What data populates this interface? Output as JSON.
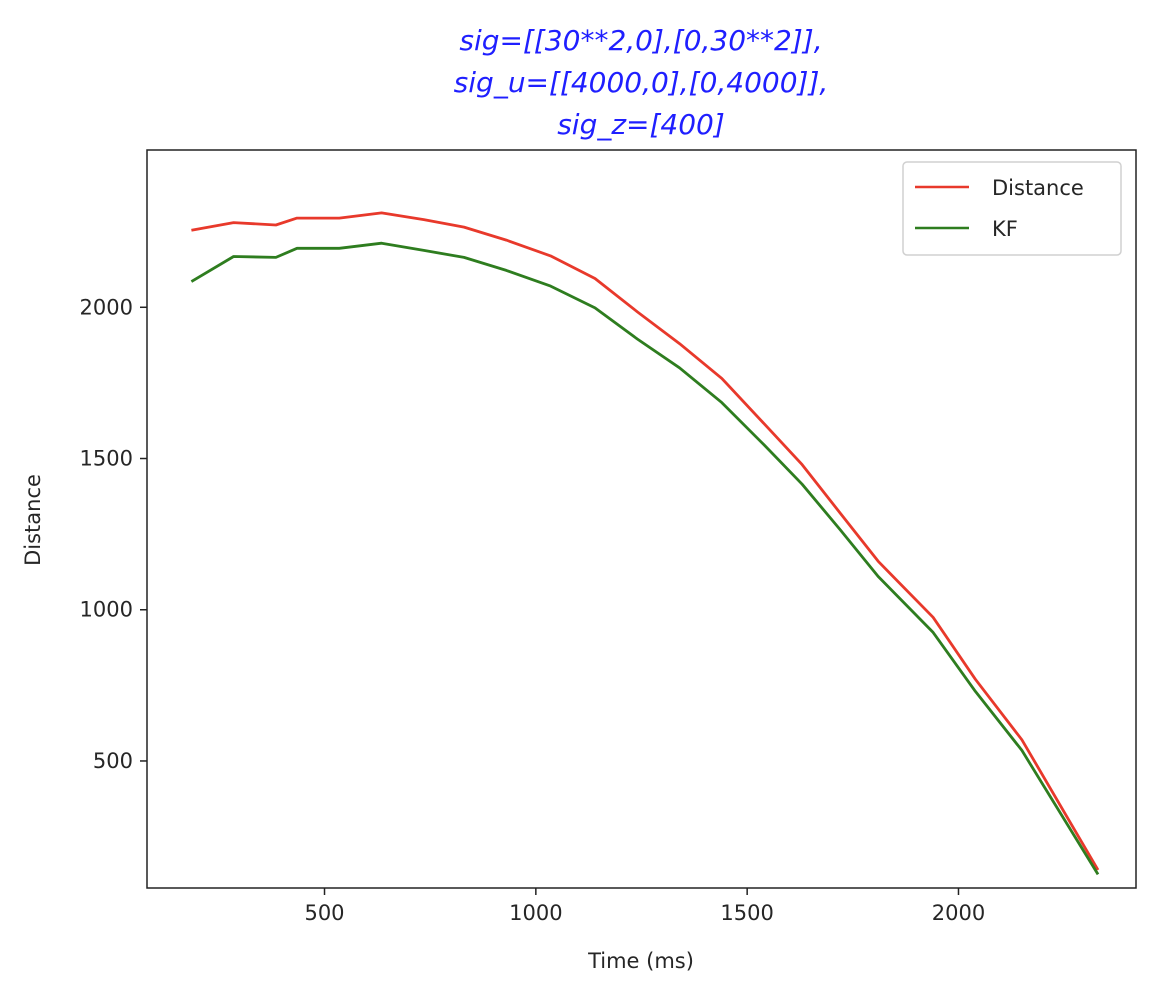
{
  "chart_data": {
    "type": "line",
    "title_lines": [
      "sig=[[30**2,0],[0,30**2]],",
      "sig_u=[[4000,0],[0,4000]],",
      "sig_z=[400]"
    ],
    "title_color": "#1f1fff",
    "xlabel": "Time (ms)",
    "ylabel": "Distance",
    "xlim": [
      80,
      2420
    ],
    "ylim": [
      80,
      2520
    ],
    "xticks": [
      500,
      1000,
      1500,
      2000
    ],
    "yticks": [
      500,
      1000,
      1500,
      2000
    ],
    "grid": false,
    "legend_position": "top-right",
    "series": [
      {
        "name": "Distance",
        "color": "#e8392b",
        "x": [
          185,
          285,
          385,
          435,
          535,
          635,
          735,
          830,
          930,
          1035,
          1140,
          1240,
          1340,
          1440,
          1540,
          1630,
          1720,
          1810,
          1940,
          2040,
          2150,
          2330
        ],
        "y": [
          2255,
          2280,
          2272,
          2295,
          2295,
          2312,
          2290,
          2265,
          2222,
          2170,
          2095,
          1985,
          1880,
          1765,
          1615,
          1480,
          1320,
          1160,
          975,
          770,
          570,
          140
        ]
      },
      {
        "name": "KF",
        "color": "#2e7d1f",
        "x": [
          185,
          285,
          385,
          435,
          535,
          635,
          735,
          830,
          930,
          1035,
          1140,
          1240,
          1340,
          1440,
          1540,
          1630,
          1720,
          1810,
          1940,
          2040,
          2150,
          2330
        ],
        "y": [
          2085,
          2168,
          2165,
          2195,
          2195,
          2212,
          2188,
          2165,
          2122,
          2070,
          1998,
          1895,
          1800,
          1685,
          1545,
          1415,
          1265,
          1110,
          925,
          730,
          535,
          125
        ]
      }
    ]
  }
}
